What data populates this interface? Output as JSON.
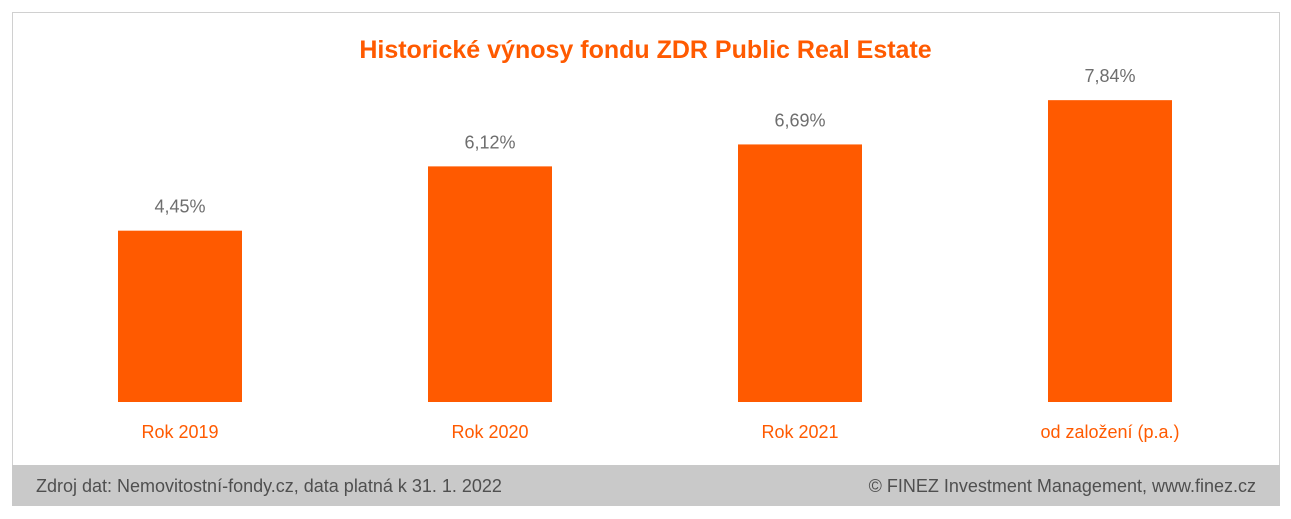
{
  "chart_data": {
    "type": "bar",
    "title": "Historické výnosy fondu ZDR Public Real Estate",
    "categories": [
      "Rok 2019",
      "Rok 2020",
      "Rok 2021",
      "od založení (p.a.)"
    ],
    "values": [
      4.45,
      6.12,
      6.69,
      7.84
    ],
    "value_labels": [
      "4,45%",
      "6,12%",
      "6,69%",
      "7,84%"
    ],
    "ylim": [
      0,
      8
    ],
    "grid": false,
    "bar_color": "#ff5a00"
  },
  "footer": {
    "source": "Zdroj dat: Nemovitostní-fondy.cz, data platná k 31. 1. 2022",
    "copyright": "© FINEZ Investment Management, www.finez.cz"
  },
  "colors": {
    "accent": "#ff5a00",
    "footer_bg": "#c9c9c9",
    "label_gray": "#6e6e6e"
  }
}
